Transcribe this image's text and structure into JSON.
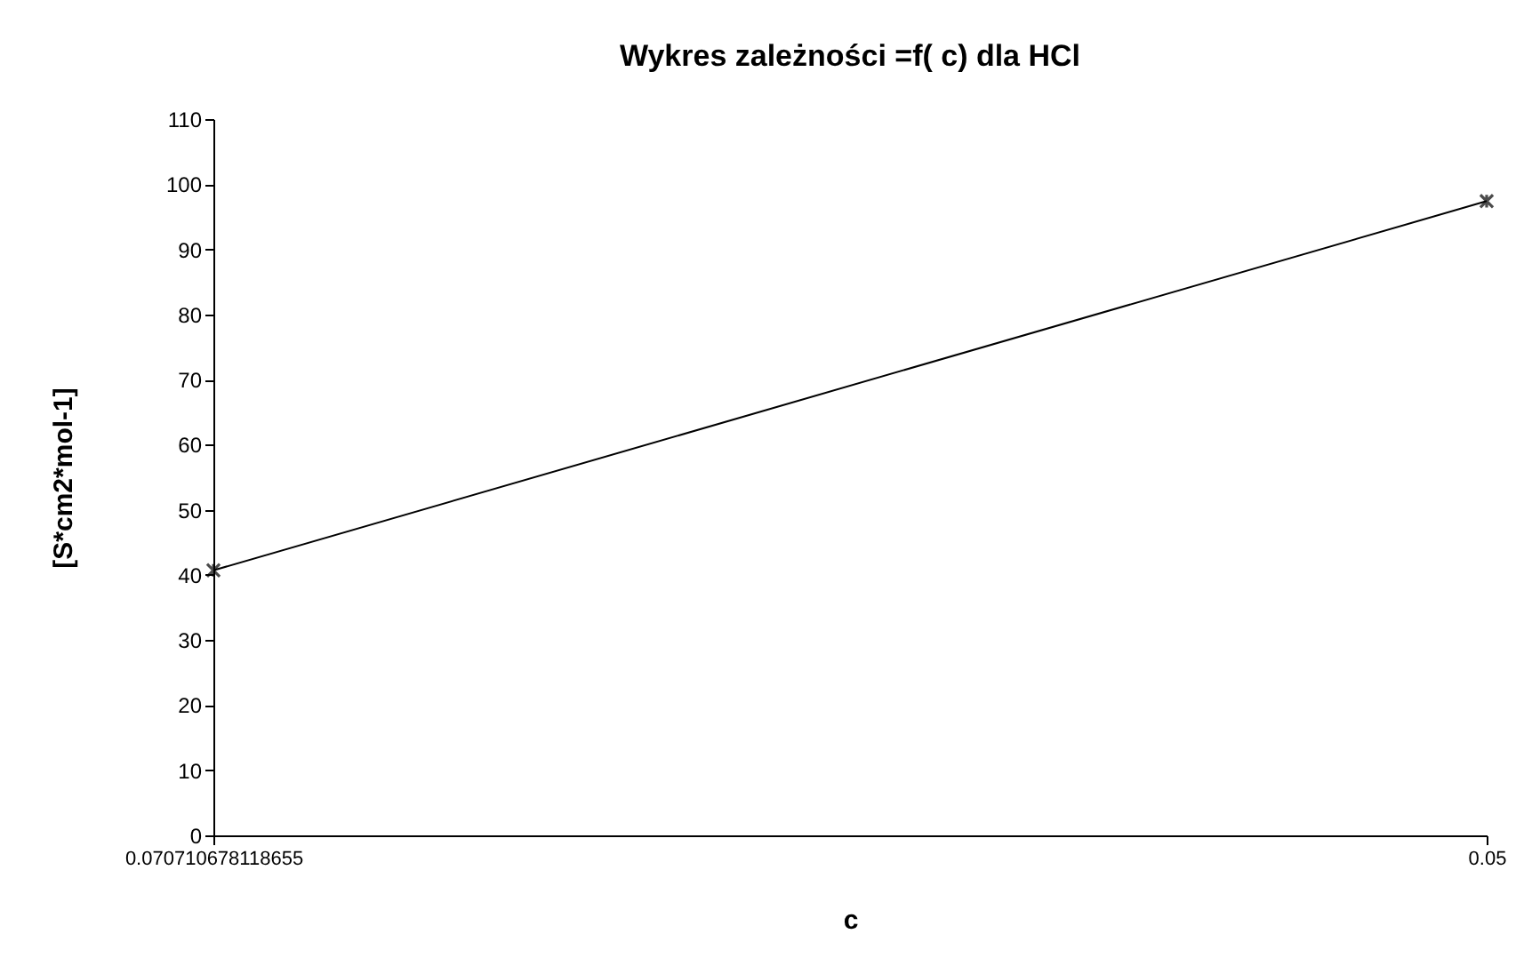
{
  "chart_data": {
    "type": "line",
    "title": "Wykres zależności    =f( c) dla HCl",
    "xlabel": "c",
    "ylabel": "[S*cm2*mol-1]",
    "categories": [
      "0.070710678118655",
      "0.05"
    ],
    "series": [
      {
        "color": "#000000",
        "values": [
          40.7,
          97.4
        ]
      }
    ],
    "ylim": [
      0,
      110
    ],
    "yticks": [
      0,
      10,
      20,
      30,
      40,
      50,
      60,
      70,
      80,
      90,
      100,
      110
    ],
    "grid": false,
    "marker": "cross",
    "line_style": "solid"
  }
}
